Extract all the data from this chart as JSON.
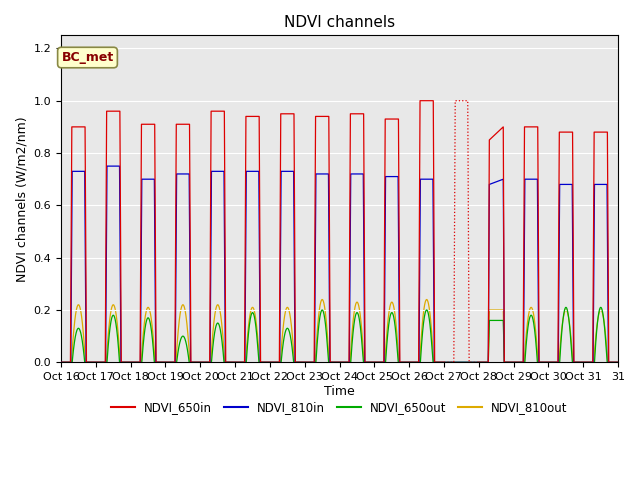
{
  "title": "NDVI channels",
  "ylabel": "NDVI channels (W/m2/nm)",
  "xlabel": "Time",
  "annotation": "BC_met",
  "ylim": [
    0.0,
    1.25
  ],
  "legend_labels": [
    "NDVI_650in",
    "NDVI_810in",
    "NDVI_650out",
    "NDVI_810out"
  ],
  "legend_colors": [
    "#dd0000",
    "#0000cc",
    "#00aa00",
    "#ddaa00"
  ],
  "bg_color": "#e8e8e8",
  "xtick_labels": [
    "Oct 16",
    "Oct 17",
    "Oct 18",
    "Oct 19",
    "Oct 20",
    "Oct 21",
    "Oct 22",
    "Oct 23",
    "Oct 24",
    "Oct 25",
    "Oct 26",
    "Oct 27",
    "Oct 28",
    "Oct 29",
    "Oct 30",
    "Oct 31"
  ],
  "peak_650in": [
    0.9,
    0.96,
    0.91,
    0.91,
    0.96,
    0.94,
    0.95,
    0.94,
    0.95,
    0.93,
    1.0,
    0.0,
    0.85,
    0.9,
    0.88,
    0.88
  ],
  "peak_810in": [
    0.73,
    0.75,
    0.7,
    0.72,
    0.73,
    0.73,
    0.73,
    0.72,
    0.72,
    0.71,
    0.7,
    0.0,
    0.68,
    0.7,
    0.68,
    0.68
  ],
  "peak_650out": [
    0.13,
    0.18,
    0.17,
    0.1,
    0.15,
    0.19,
    0.13,
    0.2,
    0.19,
    0.19,
    0.2,
    0.0,
    0.16,
    0.18,
    0.21,
    0.21
  ],
  "peak_810out": [
    0.22,
    0.22,
    0.21,
    0.22,
    0.22,
    0.21,
    0.21,
    0.24,
    0.23,
    0.23,
    0.24,
    0.0,
    0.2,
    0.21,
    0.2,
    0.2
  ],
  "title_fontsize": 11,
  "axis_fontsize": 9,
  "tick_fontsize": 8
}
